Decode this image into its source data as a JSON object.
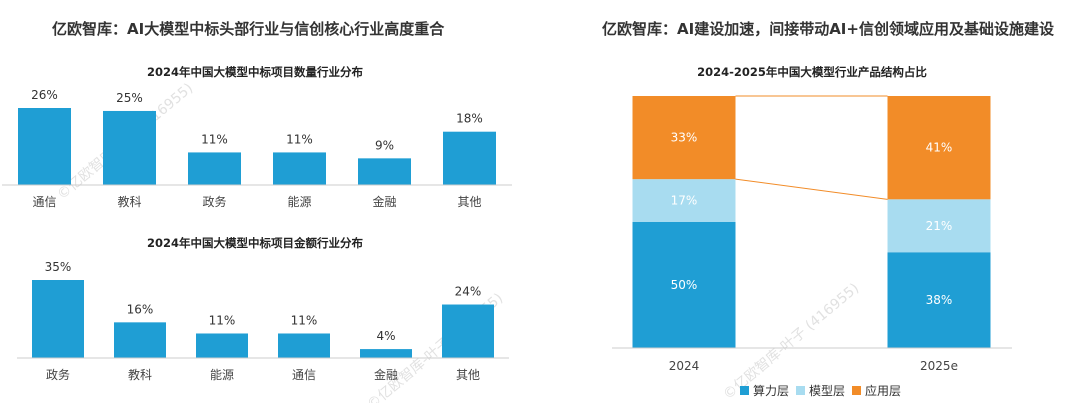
{
  "left_panel": {
    "title": "亿欧智库：AI大模型中标头部行业与信创核心行业高度重合"
  },
  "right_panel": {
    "title": "亿欧智库：AI建设加速，间接带动AI+信创领域应用及基础设施建设"
  },
  "watermark": "©亿欧智库-叶子 (416955)",
  "colors": {
    "bar": "#1f9ed4",
    "compute": "#1f9ed4",
    "model": "#a8dcf0",
    "application": "#f28c28",
    "axis": "#cccccc"
  },
  "chart_data": [
    {
      "type": "bar",
      "title": "2024年中国大模型中标项目数量行业分布",
      "categories": [
        "通信",
        "教科",
        "政务",
        "能源",
        "金融",
        "其他"
      ],
      "values": [
        26,
        25,
        11,
        11,
        9,
        18
      ],
      "value_labels": [
        "26%",
        "25%",
        "11%",
        "11%",
        "9%",
        "18%"
      ],
      "unit": "%",
      "ylim": [
        0,
        26
      ]
    },
    {
      "type": "bar",
      "title": "2024年中国大模型中标项目金额行业分布",
      "categories": [
        "政务",
        "教科",
        "能源",
        "通信",
        "金融",
        "其他"
      ],
      "values": [
        35,
        16,
        11,
        11,
        4,
        24
      ],
      "value_labels": [
        "35%",
        "16%",
        "11%",
        "11%",
        "4%",
        "24%"
      ],
      "unit": "%",
      "ylim": [
        0,
        35
      ]
    },
    {
      "type": "stacked_bar",
      "title": "2024-2025年中国大模型行业产品结构占比",
      "categories": [
        "2024",
        "2025e"
      ],
      "series": [
        {
          "name": "算力层",
          "values": [
            50,
            38
          ],
          "labels": [
            "50%",
            "38%"
          ]
        },
        {
          "name": "模型层",
          "values": [
            17,
            21
          ],
          "labels": [
            "17%",
            "21%"
          ]
        },
        {
          "name": "应用层",
          "values": [
            33,
            41
          ],
          "labels": [
            "33%",
            "41%"
          ]
        }
      ],
      "ylim": [
        0,
        100
      ],
      "connectors": true,
      "legend": [
        "算力层",
        "模型层",
        "应用层"
      ],
      "legend_position": "bottom"
    }
  ]
}
